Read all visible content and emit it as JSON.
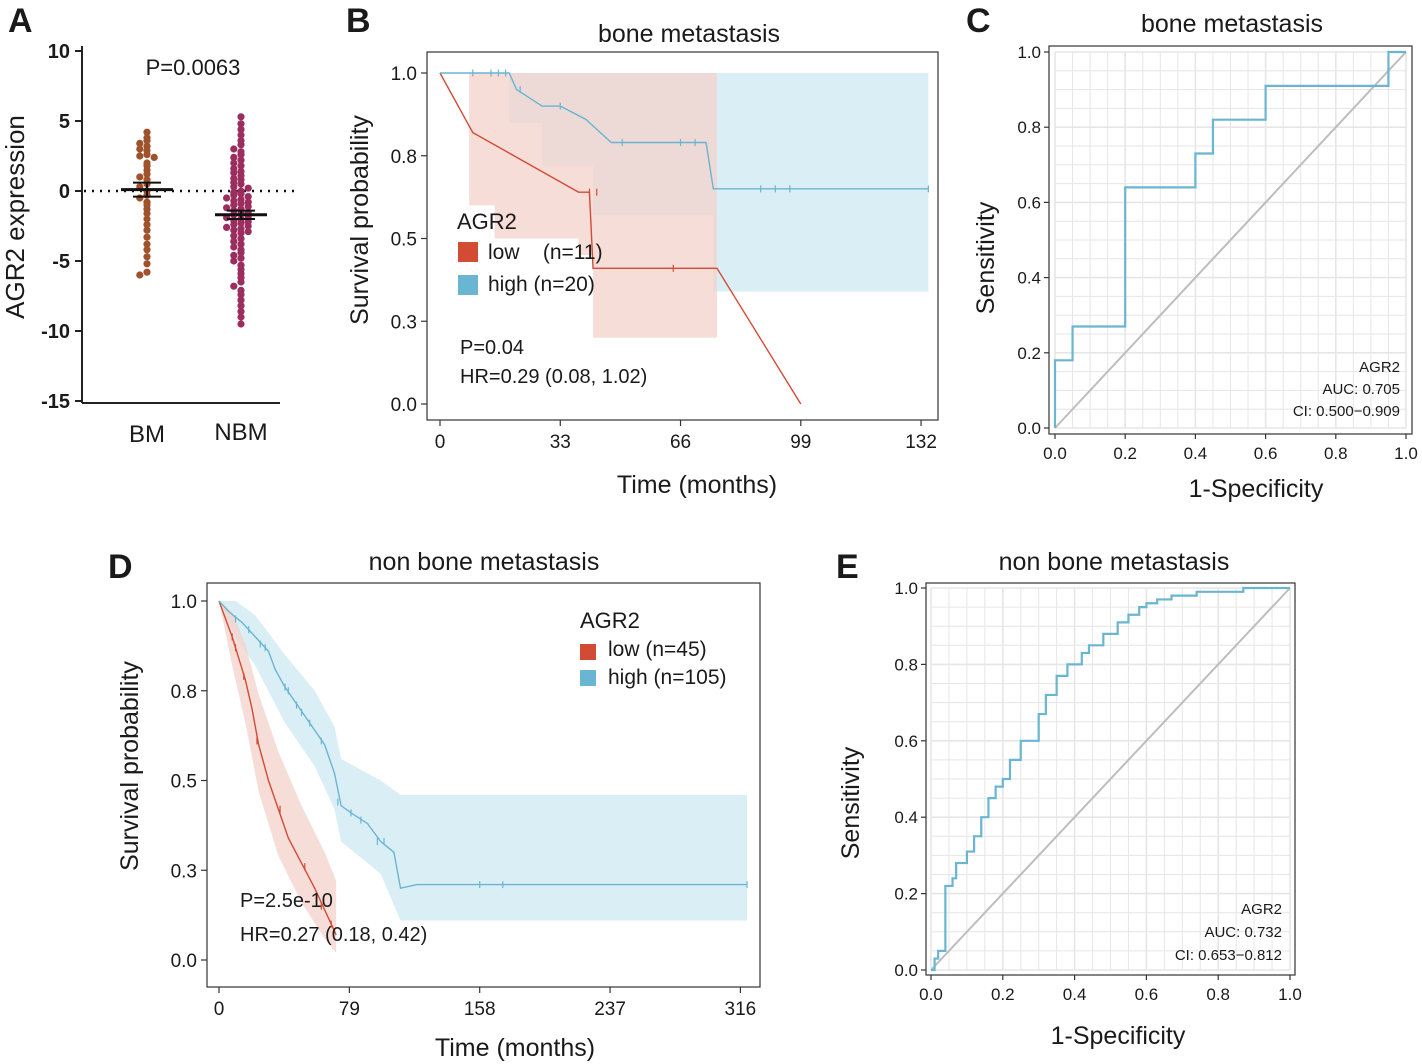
{
  "colors": {
    "bm_dots": "#a0522d",
    "nbm_dots": "#9b2e5e",
    "low": "#d24b35",
    "high": "#6ab5d2",
    "low_band": "#f3d1cb",
    "high_band": "#daeef6",
    "overlap_band": "#d6d4d6",
    "diag": "#bdbdbd",
    "grid": "#e6e6e6"
  },
  "panels": {
    "A": {
      "letter": "A",
      "ylabel": "AGR2 expression",
      "pvalue": "P=0.0063",
      "yticks": [
        "10",
        "5",
        "0",
        "-5",
        "-10",
        "-15"
      ],
      "groups": [
        "BM",
        "NBM"
      ]
    },
    "B": {
      "letter": "B",
      "title": "bone metastasis",
      "xlabel": "Time (months)",
      "ylabel": "Survival probability",
      "legend_title": "AGR2",
      "legend_low": "low    (n=11)",
      "legend_high": "high (n=20)",
      "pvalue": "P=0.04",
      "hr": "HR=0.29 (0.08, 1.02)",
      "xticks": [
        "0",
        "33",
        "66",
        "99",
        "132"
      ],
      "yticks": [
        "0.0",
        "0.3",
        "0.5",
        "0.8",
        "1.0"
      ]
    },
    "C": {
      "letter": "C",
      "title": "bone metastasis",
      "xlabel": "1-Specificity",
      "ylabel": "Sensitivity",
      "label": "AGR2",
      "auc": "AUC: 0.705",
      "ci": "CI: 0.500−0.909",
      "xticks": [
        "0.0",
        "0.2",
        "0.4",
        "0.6",
        "0.8",
        "1.0"
      ],
      "yticks": [
        "0.0",
        "0.2",
        "0.4",
        "0.6",
        "0.8",
        "1.0"
      ]
    },
    "D": {
      "letter": "D",
      "title": "non bone metastasis",
      "xlabel": "Time (months)",
      "ylabel": "Survival probability",
      "legend_title": "AGR2",
      "legend_low": "low (n=45)",
      "legend_high": "high (n=105)",
      "pvalue": "P=2.5e-10",
      "hr": "HR=0.27 (0.18, 0.42)",
      "xticks": [
        "0",
        "79",
        "158",
        "237",
        "316"
      ],
      "yticks": [
        "0.0",
        "0.3",
        "0.5",
        "0.8",
        "1.0"
      ]
    },
    "E": {
      "letter": "E",
      "title": "non bone metastasis",
      "xlabel": "1-Specificity",
      "ylabel": "Sensitivity",
      "label": "AGR2",
      "auc": "AUC: 0.732",
      "ci": "CI: 0.653−0.812",
      "xticks": [
        "0.0",
        "0.2",
        "0.4",
        "0.6",
        "0.8",
        "1.0"
      ],
      "yticks": [
        "0.0",
        "0.2",
        "0.4",
        "0.6",
        "0.8",
        "1.0"
      ]
    }
  },
  "chart_data": [
    {
      "id": "A",
      "type": "scatter",
      "categories": [
        "BM",
        "NBM"
      ],
      "ylim": [
        -15,
        10
      ],
      "series": [
        {
          "name": "BM",
          "mean": 0.1,
          "sem": 0.5,
          "values": [
            4.2,
            3.8,
            3.6,
            3.4,
            3.2,
            3.0,
            2.9,
            2.6,
            2.5,
            2.4,
            2.0,
            1.8,
            1.5,
            1.2,
            1.0,
            0.8,
            0.5,
            0.3,
            0.0,
            -0.3,
            -0.5,
            -0.8,
            -1.0,
            -1.3,
            -1.6,
            -2.0,
            -2.4,
            -2.8,
            -3.3,
            -3.8,
            -4.2,
            -4.7,
            -5.2,
            -5.8,
            -6.0
          ]
        },
        {
          "name": "NBM",
          "mean": -1.7,
          "sem": 0.3,
          "values": [
            5.3,
            4.8,
            4.4,
            4.0,
            3.6,
            3.3,
            3.0,
            2.8,
            2.6,
            2.4,
            2.2,
            2.0,
            1.8,
            1.6,
            1.4,
            1.3,
            1.1,
            0.9,
            0.8,
            0.6,
            0.5,
            0.3,
            0.2,
            0.0,
            -0.1,
            -0.2,
            -0.3,
            -0.4,
            -0.5,
            -0.6,
            -0.7,
            -0.8,
            -0.9,
            -1.0,
            -1.1,
            -1.2,
            -1.3,
            -1.4,
            -1.5,
            -1.6,
            -1.7,
            -1.8,
            -1.9,
            -2.0,
            -2.1,
            -2.2,
            -2.3,
            -2.4,
            -2.5,
            -2.6,
            -2.7,
            -2.8,
            -2.9,
            -3.0,
            -3.2,
            -3.4,
            -3.6,
            -3.8,
            -4.0,
            -4.2,
            -4.4,
            -4.6,
            -4.8,
            -5.0,
            -5.3,
            -5.6,
            -5.9,
            -6.2,
            -6.5,
            -6.8,
            -7.1,
            -7.4,
            -7.8,
            -8.2,
            -8.6,
            -9.0,
            -9.5
          ]
        }
      ]
    },
    {
      "id": "B",
      "type": "line",
      "xlim": [
        0,
        135
      ],
      "ylim": [
        0,
        1
      ],
      "series": [
        {
          "name": "low (n=11)",
          "steps": [
            [
              0,
              1.0
            ],
            [
              9,
              0.82
            ],
            [
              38,
              0.64
            ],
            [
              41,
              0.64
            ],
            [
              42,
              0.41
            ],
            [
              76,
              0.41
            ],
            [
              99,
              0.0
            ]
          ],
          "censors": [
            [
              41,
              0.64
            ],
            [
              43,
              0.64
            ],
            [
              64,
              0.41
            ]
          ],
          "band": [
            [
              0,
              1.0,
              1.0
            ],
            [
              8,
              1.0,
              0.6
            ],
            [
              15,
              1.0,
              0.5
            ],
            [
              38,
              1.0,
              0.45
            ],
            [
              42,
              1.0,
              0.2
            ],
            [
              76,
              0.86,
              0.2
            ]
          ]
        },
        {
          "name": "high (n=20)",
          "steps": [
            [
              0,
              1.0
            ],
            [
              19,
              1.0
            ],
            [
              21,
              0.95
            ],
            [
              28,
              0.9
            ],
            [
              33,
              0.9
            ],
            [
              40,
              0.86
            ],
            [
              47,
              0.79
            ],
            [
              73,
              0.79
            ],
            [
              75,
              0.65
            ],
            [
              134,
              0.65
            ]
          ],
          "censors": [
            [
              9,
              1.0
            ],
            [
              14,
              1.0
            ],
            [
              16,
              1.0
            ],
            [
              18,
              1.0
            ],
            [
              22,
              0.95
            ],
            [
              33,
              0.9
            ],
            [
              50,
              0.79
            ],
            [
              66,
              0.79
            ],
            [
              70,
              0.79
            ],
            [
              88,
              0.65
            ],
            [
              92,
              0.65
            ],
            [
              96,
              0.65
            ],
            [
              134,
              0.65
            ]
          ],
          "band": [
            [
              0,
              1.0,
              1.0
            ],
            [
              19,
              1.0,
              0.85
            ],
            [
              28,
              1.0,
              0.72
            ],
            [
              42,
              1.0,
              0.57
            ],
            [
              73,
              1.0,
              0.57
            ],
            [
              75,
              1.0,
              0.34
            ],
            [
              134,
              1.0,
              0.34
            ]
          ]
        }
      ]
    },
    {
      "id": "C",
      "type": "line",
      "xlim": [
        0,
        1
      ],
      "ylim": [
        0,
        1
      ],
      "series": [
        {
          "name": "AGR2",
          "x": [
            0,
            0,
            0.05,
            0.05,
            0.2,
            0.2,
            0.4,
            0.4,
            0.45,
            0.45,
            0.6,
            0.6,
            0.95,
            0.95,
            1.0
          ],
          "y": [
            0,
            0.18,
            0.18,
            0.27,
            0.27,
            0.64,
            0.64,
            0.73,
            0.73,
            0.82,
            0.82,
            0.91,
            0.91,
            1.0,
            1.0
          ]
        }
      ]
    },
    {
      "id": "D",
      "type": "line",
      "xlim": [
        0,
        320
      ],
      "ylim": [
        0,
        1
      ],
      "series": [
        {
          "name": "low (n=45)",
          "points": [
            [
              0,
              1.0
            ],
            [
              4,
              0.95
            ],
            [
              8,
              0.9
            ],
            [
              12,
              0.84
            ],
            [
              16,
              0.78
            ],
            [
              20,
              0.7
            ],
            [
              24,
              0.6
            ],
            [
              30,
              0.5
            ],
            [
              36,
              0.42
            ],
            [
              42,
              0.34
            ],
            [
              50,
              0.27
            ],
            [
              58,
              0.2
            ],
            [
              64,
              0.14
            ],
            [
              68,
              0.1
            ],
            [
              71,
              0.07
            ]
          ],
          "censors": [
            [
              8,
              0.9
            ],
            [
              10,
              0.87
            ],
            [
              15,
              0.79
            ],
            [
              23,
              0.61
            ],
            [
              37,
              0.42
            ],
            [
              52,
              0.26
            ],
            [
              62,
              0.15
            ],
            [
              68,
              0.1
            ]
          ],
          "band": [
            [
              0,
              1.0,
              1.0
            ],
            [
              8,
              0.97,
              0.82
            ],
            [
              16,
              0.88,
              0.66
            ],
            [
              24,
              0.74,
              0.47
            ],
            [
              36,
              0.58,
              0.29
            ],
            [
              50,
              0.43,
              0.16
            ],
            [
              64,
              0.3,
              0.06
            ],
            [
              71,
              0.22,
              0.02
            ]
          ]
        },
        {
          "name": "high (n=105)",
          "points": [
            [
              0,
              1.0
            ],
            [
              6,
              0.97
            ],
            [
              14,
              0.94
            ],
            [
              22,
              0.9
            ],
            [
              30,
              0.86
            ],
            [
              34,
              0.81
            ],
            [
              40,
              0.76
            ],
            [
              46,
              0.72
            ],
            [
              52,
              0.68
            ],
            [
              58,
              0.64
            ],
            [
              64,
              0.6
            ],
            [
              70,
              0.52
            ],
            [
              74,
              0.43
            ],
            [
              80,
              0.41
            ],
            [
              90,
              0.38
            ],
            [
              98,
              0.33
            ],
            [
              106,
              0.3
            ],
            [
              110,
              0.2
            ],
            [
              120,
              0.21
            ],
            [
              320,
              0.21
            ]
          ],
          "censors": [
            [
              10,
              0.95
            ],
            [
              18,
              0.92
            ],
            [
              25,
              0.88
            ],
            [
              28,
              0.87
            ],
            [
              40,
              0.76
            ],
            [
              42,
              0.75
            ],
            [
              47,
              0.71
            ],
            [
              50,
              0.69
            ],
            [
              55,
              0.66
            ],
            [
              62,
              0.61
            ],
            [
              72,
              0.44
            ],
            [
              80,
              0.41
            ],
            [
              86,
              0.39
            ],
            [
              96,
              0.33
            ],
            [
              100,
              0.33
            ],
            [
              158,
              0.21
            ],
            [
              172,
              0.21
            ],
            [
              320,
              0.21
            ]
          ],
          "band": [
            [
              0,
              1.0,
              1.0
            ],
            [
              10,
              1.0,
              0.9
            ],
            [
              22,
              0.96,
              0.82
            ],
            [
              40,
              0.85,
              0.66
            ],
            [
              58,
              0.75,
              0.54
            ],
            [
              70,
              0.65,
              0.42
            ],
            [
              74,
              0.56,
              0.33
            ],
            [
              98,
              0.5,
              0.24
            ],
            [
              110,
              0.46,
              0.11
            ],
            [
              320,
              0.46,
              0.11
            ]
          ]
        }
      ]
    },
    {
      "id": "E",
      "type": "line",
      "xlim": [
        0,
        1
      ],
      "ylim": [
        0,
        1
      ],
      "series": [
        {
          "name": "AGR2",
          "x": [
            0.0,
            0.01,
            0.01,
            0.02,
            0.02,
            0.04,
            0.04,
            0.06,
            0.06,
            0.07,
            0.07,
            0.1,
            0.1,
            0.12,
            0.12,
            0.14,
            0.14,
            0.16,
            0.16,
            0.18,
            0.18,
            0.2,
            0.2,
            0.22,
            0.22,
            0.25,
            0.25,
            0.3,
            0.3,
            0.32,
            0.32,
            0.35,
            0.35,
            0.38,
            0.38,
            0.42,
            0.42,
            0.44,
            0.44,
            0.48,
            0.48,
            0.52,
            0.52,
            0.55,
            0.55,
            0.58,
            0.58,
            0.6,
            0.6,
            0.63,
            0.63,
            0.67,
            0.67,
            0.74,
            0.74,
            0.87,
            0.87,
            1.0
          ],
          "y": [
            0.0,
            0.0,
            0.03,
            0.03,
            0.05,
            0.05,
            0.22,
            0.22,
            0.24,
            0.24,
            0.28,
            0.28,
            0.31,
            0.31,
            0.35,
            0.35,
            0.4,
            0.4,
            0.45,
            0.45,
            0.48,
            0.48,
            0.5,
            0.5,
            0.55,
            0.55,
            0.6,
            0.6,
            0.67,
            0.67,
            0.72,
            0.72,
            0.77,
            0.77,
            0.8,
            0.8,
            0.83,
            0.83,
            0.85,
            0.85,
            0.88,
            0.88,
            0.91,
            0.91,
            0.93,
            0.93,
            0.95,
            0.95,
            0.96,
            0.96,
            0.97,
            0.97,
            0.98,
            0.98,
            0.99,
            0.99,
            1.0,
            1.0
          ]
        }
      ]
    }
  ]
}
